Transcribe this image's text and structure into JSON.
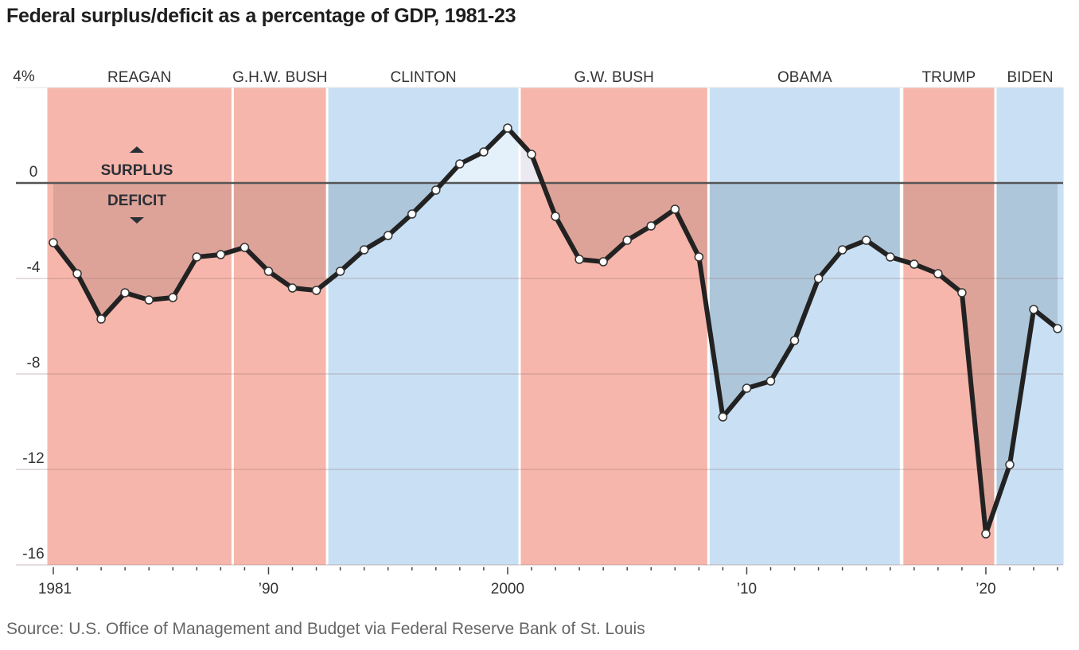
{
  "chart_data": {
    "type": "line",
    "title": "Federal surplus/deficit as a percentage of GDP, 1981-23",
    "source": "Source: U.S. Office of Management and Budget via Federal Reserve Bank of St. Louis",
    "xlabel": "",
    "ylabel": "",
    "ylim": [
      -16,
      4
    ],
    "xlim": [
      1981,
      2023
    ],
    "y_ticks": [
      {
        "value": 4,
        "label": "4%"
      },
      {
        "value": 0,
        "label": "0"
      },
      {
        "value": -4,
        "label": "-4"
      },
      {
        "value": -8,
        "label": "-8"
      },
      {
        "value": -12,
        "label": "-12"
      },
      {
        "value": -16,
        "label": "-16"
      }
    ],
    "x_ticks": [
      {
        "value": 1981,
        "label": "1981"
      },
      {
        "value": 1990,
        "label": "’90"
      },
      {
        "value": 2000,
        "label": "2000"
      },
      {
        "value": 2010,
        "label": "’10"
      },
      {
        "value": 2020,
        "label": "’20"
      }
    ],
    "grid": true,
    "annotations": {
      "surplus_label": "SURPLUS",
      "deficit_label": "DEFICIT"
    },
    "presidencies": [
      {
        "name": "REAGAN",
        "party": "R",
        "start": 1980.75,
        "end": 1988.45
      },
      {
        "name": "G.H.W. BUSH",
        "party": "R",
        "start": 1988.55,
        "end": 1992.4
      },
      {
        "name": "CLINTON",
        "party": "D",
        "start": 1992.5,
        "end": 2000.45
      },
      {
        "name": "G.W. BUSH",
        "party": "R",
        "start": 2000.55,
        "end": 2008.35
      },
      {
        "name": "OBAMA",
        "party": "D",
        "start": 2008.45,
        "end": 2016.4
      },
      {
        "name": "TRUMP",
        "party": "R",
        "start": 2016.55,
        "end": 2020.35
      },
      {
        "name": "BIDEN",
        "party": "D",
        "start": 2020.45,
        "end": 2023.25
      }
    ],
    "colors": {
      "R": "#f7b6ab",
      "D": "#c9e0f4",
      "R_deficit_shade": "#dea398",
      "D_deficit_shade": "#aec6da",
      "surplus_shade": "#e9f3fc",
      "line": "#222222",
      "zero_line": "#555555"
    },
    "series": [
      {
        "name": "Surplus/deficit (% of GDP)",
        "x": [
          1981,
          1982,
          1983,
          1984,
          1985,
          1986,
          1987,
          1988,
          1989,
          1990,
          1991,
          1992,
          1993,
          1994,
          1995,
          1996,
          1997,
          1998,
          1999,
          2000,
          2001,
          2002,
          2003,
          2004,
          2005,
          2006,
          2007,
          2008,
          2009,
          2010,
          2011,
          2012,
          2013,
          2014,
          2015,
          2016,
          2017,
          2018,
          2019,
          2020,
          2021,
          2022,
          2023
        ],
        "values": [
          -2.5,
          -3.8,
          -5.7,
          -4.6,
          -4.9,
          -4.8,
          -3.1,
          -3.0,
          -2.7,
          -3.7,
          -4.4,
          -4.5,
          -3.7,
          -2.8,
          -2.2,
          -1.3,
          -0.3,
          0.8,
          1.3,
          2.3,
          1.2,
          -1.4,
          -3.2,
          -3.3,
          -2.4,
          -1.8,
          -1.1,
          -3.1,
          -9.8,
          -8.6,
          -8.3,
          -6.6,
          -4.0,
          -2.8,
          -2.4,
          -3.1,
          -3.4,
          -3.8,
          -4.6,
          -14.7,
          -11.8,
          -5.3,
          -6.1
        ]
      }
    ]
  }
}
